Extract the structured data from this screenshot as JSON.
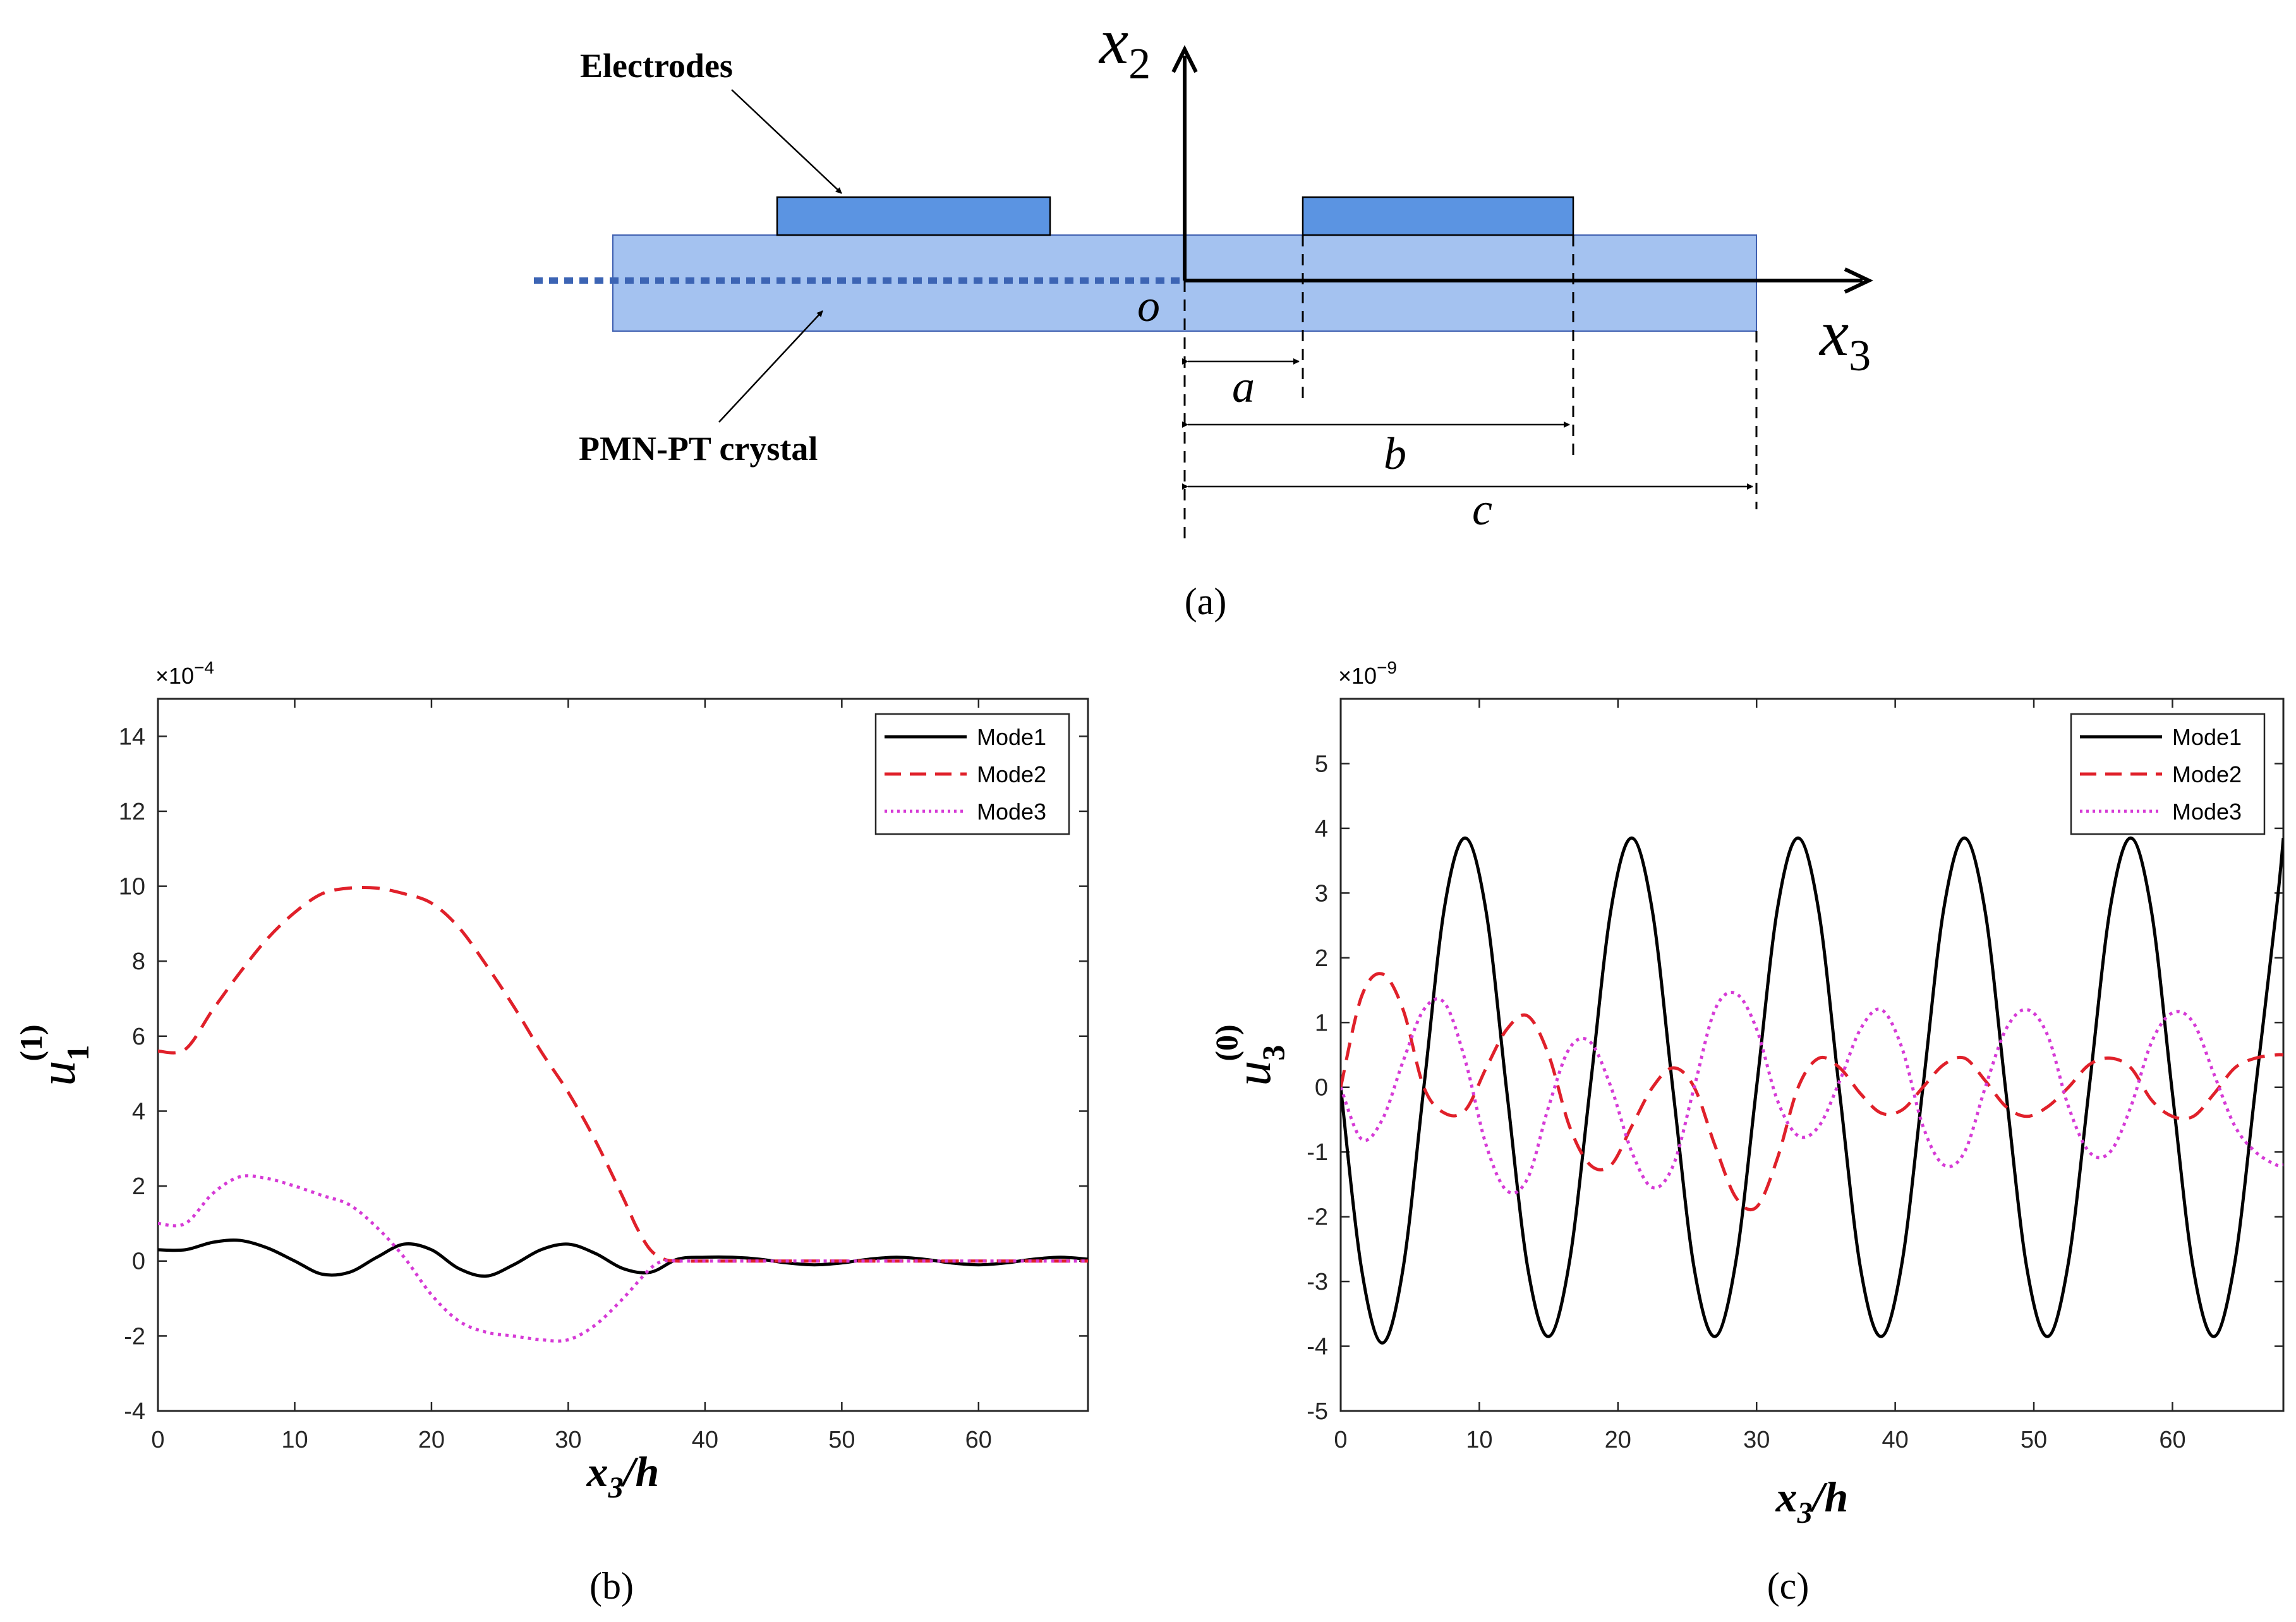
{
  "figure_a": {
    "labels": {
      "electrodes": "Electrodes",
      "crystal": "PMN-PT crystal",
      "x2_base": "x",
      "x2_sub": "2",
      "x3_base": "x",
      "x3_sub": "3",
      "origin": "o",
      "a": "a",
      "b": "b",
      "c": "c"
    },
    "caption": "(a)",
    "colors": {
      "crystal": "#a4c2f0",
      "electrode": "#5b94e2",
      "dotted_line": "#3c64b4"
    }
  },
  "chart_data": [
    {
      "type": "line",
      "panel": "b",
      "caption": "(b)",
      "xlabel_base": "x",
      "xlabel_sub": "3",
      "xlabel_tail": "/h",
      "ylabel_base": "u",
      "ylabel_sub": "1",
      "ylabel_sup": "(1)",
      "exponent_label": "×10",
      "exponent_power": "−4",
      "xlim": [
        0,
        68
      ],
      "ylim": [
        -4,
        15
      ],
      "xticks": [
        0,
        10,
        20,
        30,
        40,
        50,
        60
      ],
      "yticks": [
        -4,
        -2,
        0,
        2,
        4,
        6,
        8,
        10,
        12,
        14
      ],
      "legend_position": "top-right",
      "series": [
        {
          "name": "Mode1",
          "color": "#000000",
          "style": "solid",
          "x": [
            0,
            2,
            4,
            6,
            8,
            10,
            12,
            14,
            16,
            18,
            20,
            22,
            24,
            26,
            28,
            30,
            32,
            34,
            36,
            38,
            40,
            42,
            44,
            46,
            48,
            50,
            52,
            54,
            56,
            58,
            60,
            62,
            64,
            66,
            68
          ],
          "y": [
            0.3,
            0.3,
            0.5,
            0.55,
            0.35,
            0.0,
            -0.35,
            -0.3,
            0.1,
            0.45,
            0.3,
            -0.2,
            -0.4,
            -0.1,
            0.3,
            0.45,
            0.2,
            -0.2,
            -0.3,
            0.05,
            0.1,
            0.1,
            0.05,
            -0.05,
            -0.1,
            -0.05,
            0.05,
            0.1,
            0.05,
            -0.05,
            -0.1,
            -0.05,
            0.05,
            0.1,
            0.05
          ]
        },
        {
          "name": "Mode2",
          "color": "#e0202a",
          "style": "dashed",
          "x": [
            0,
            2,
            4,
            6,
            8,
            10,
            12,
            14,
            16,
            18,
            20,
            22,
            24,
            26,
            28,
            30,
            32,
            34,
            35,
            36,
            37,
            38,
            40,
            45,
            50,
            55,
            60,
            65,
            68
          ],
          "y": [
            5.6,
            5.65,
            6.7,
            7.7,
            8.6,
            9.3,
            9.8,
            9.95,
            9.95,
            9.8,
            9.55,
            8.9,
            7.9,
            6.8,
            5.6,
            4.5,
            3.2,
            1.7,
            0.9,
            0.3,
            0.05,
            0.0,
            0.0,
            0.0,
            0.0,
            0.0,
            0.0,
            0.0,
            0.0
          ]
        },
        {
          "name": "Mode3",
          "color": "#d63ad6",
          "style": "dotted",
          "x": [
            0,
            2,
            4,
            6,
            8,
            10,
            12,
            14,
            16,
            18,
            20,
            22,
            24,
            26,
            28,
            30,
            32,
            34,
            36,
            37,
            38,
            40,
            45,
            50,
            55,
            60,
            65,
            68
          ],
          "y": [
            1.0,
            1.0,
            1.8,
            2.25,
            2.2,
            2.0,
            1.75,
            1.5,
            0.9,
            0.1,
            -0.9,
            -1.6,
            -1.9,
            -2.0,
            -2.1,
            -2.1,
            -1.7,
            -1.0,
            -0.2,
            0.0,
            0.0,
            0.0,
            0.0,
            0.0,
            0.0,
            0.0,
            0.0,
            0.0
          ]
        }
      ]
    },
    {
      "type": "line",
      "panel": "c",
      "caption": "(c)",
      "xlabel_base": "x",
      "xlabel_sub": "3",
      "xlabel_tail": "/h",
      "ylabel_base": "u",
      "ylabel_sub": "3",
      "ylabel_sup": "(0)",
      "exponent_label": "×10",
      "exponent_power": "−9",
      "xlim": [
        0,
        68
      ],
      "ylim": [
        -5,
        6
      ],
      "xticks": [
        0,
        10,
        20,
        30,
        40,
        50,
        60
      ],
      "yticks": [
        -5,
        -4,
        -3,
        -2,
        -1,
        0,
        1,
        2,
        3,
        4,
        5
      ],
      "legend_position": "top-right",
      "series": [
        {
          "name": "Mode1",
          "color": "#000000",
          "style": "solid",
          "x": [
            0,
            1.5,
            3,
            4.5,
            6,
            7.5,
            9,
            10.5,
            12,
            13.5,
            15,
            16.5,
            18,
            19.5,
            21,
            22.5,
            24,
            25.5,
            27,
            28.5,
            30,
            31.5,
            33,
            34.5,
            36,
            37.5,
            39,
            40.5,
            42,
            43.5,
            45,
            46.5,
            48,
            49.5,
            51,
            52.5,
            54,
            55.5,
            57,
            58.5,
            60,
            61.5,
            63,
            64.5,
            66,
            67.5,
            68
          ],
          "y": [
            0.0,
            -2.8,
            -3.95,
            -2.8,
            0.0,
            2.8,
            3.85,
            2.7,
            -0.1,
            -2.8,
            -3.85,
            -2.7,
            0.0,
            2.75,
            3.85,
            2.7,
            -0.1,
            -2.8,
            -3.85,
            -2.7,
            0.0,
            2.75,
            3.85,
            2.7,
            -0.1,
            -2.8,
            -3.85,
            -2.7,
            0.0,
            2.75,
            3.85,
            2.7,
            -0.1,
            -2.8,
            -3.85,
            -2.7,
            0.0,
            2.75,
            3.85,
            2.7,
            -0.1,
            -2.8,
            -3.85,
            -2.7,
            0.0,
            2.75,
            3.85
          ]
        },
        {
          "name": "Mode2",
          "color": "#e0202a",
          "style": "dashed",
          "x": [
            0,
            1.5,
            3,
            4.5,
            6,
            7.5,
            9,
            10.5,
            12,
            13.5,
            15,
            16.5,
            18,
            19.5,
            21,
            22.5,
            24,
            25.5,
            27,
            28.5,
            30,
            31.5,
            33,
            34.5,
            36,
            37.5,
            39,
            40.5,
            42,
            43.5,
            45,
            46.5,
            48,
            49.5,
            51,
            52.5,
            54,
            55.5,
            57,
            58.5,
            60,
            61.5,
            63,
            64.5,
            66,
            67.5,
            68
          ],
          "y": [
            0.0,
            1.4,
            1.75,
            1.2,
            0.0,
            -0.4,
            -0.35,
            0.3,
            0.9,
            1.1,
            0.5,
            -0.6,
            -1.2,
            -1.2,
            -0.6,
            0.0,
            0.3,
            0.0,
            -0.9,
            -1.7,
            -1.85,
            -1.1,
            0.0,
            0.45,
            0.3,
            -0.1,
            -0.4,
            -0.35,
            0.0,
            0.35,
            0.45,
            0.1,
            -0.3,
            -0.45,
            -0.3,
            0.0,
            0.35,
            0.45,
            0.3,
            -0.2,
            -0.45,
            -0.45,
            -0.1,
            0.3,
            0.45,
            0.5,
            0.5
          ]
        },
        {
          "name": "Mode3",
          "color": "#d63ad6",
          "style": "dotted",
          "x": [
            0,
            1.5,
            3,
            4.5,
            6,
            7.5,
            9,
            10.5,
            12,
            13.5,
            15,
            16.5,
            18,
            19.5,
            21,
            22.5,
            24,
            25.5,
            27,
            28.5,
            30,
            31.5,
            33,
            34.5,
            36,
            37.5,
            39,
            40.5,
            42,
            43.5,
            45,
            46.5,
            48,
            49.5,
            51,
            52.5,
            54,
            55.5,
            57,
            58.5,
            60,
            61.5,
            63,
            64.5,
            66,
            67.5,
            68
          ],
          "y": [
            0.0,
            -0.8,
            -0.5,
            0.4,
            1.2,
            1.3,
            0.4,
            -0.9,
            -1.6,
            -1.4,
            -0.3,
            0.6,
            0.7,
            0.0,
            -1.0,
            -1.55,
            -1.2,
            0.0,
            1.2,
            1.45,
            0.9,
            -0.2,
            -0.75,
            -0.6,
            0.1,
            0.9,
            1.2,
            0.6,
            -0.6,
            -1.2,
            -1.0,
            0.0,
            0.9,
            1.2,
            0.8,
            -0.3,
            -1.0,
            -1.0,
            -0.3,
            0.7,
            1.15,
            1.0,
            0.2,
            -0.6,
            -1.0,
            -1.2,
            -1.2
          ]
        }
      ]
    }
  ]
}
